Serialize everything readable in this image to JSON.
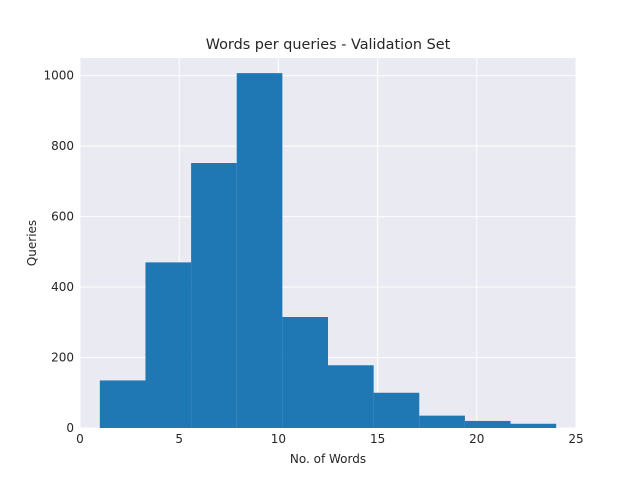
{
  "chart_data": {
    "type": "bar",
    "title": "Words per queries - Validation Set",
    "xlabel": "No. of Words",
    "ylabel": "Queries",
    "xlim": [
      0,
      25
    ],
    "ylim": [
      0,
      1050
    ],
    "xticks": [
      0,
      5,
      10,
      15,
      20,
      25
    ],
    "yticks": [
      0,
      200,
      400,
      600,
      800,
      1000
    ],
    "grid": true,
    "bin_edges": [
      1,
      3.3,
      5.6,
      7.9,
      10.2,
      12.5,
      14.8,
      17.1,
      19.4,
      21.7,
      24
    ],
    "values": [
      135,
      470,
      752,
      1007,
      315,
      178,
      100,
      35,
      20,
      12
    ],
    "colors": {
      "bar": "#1f77b4",
      "plot_background": "#eaeaf2",
      "grid": "#ffffff"
    }
  }
}
